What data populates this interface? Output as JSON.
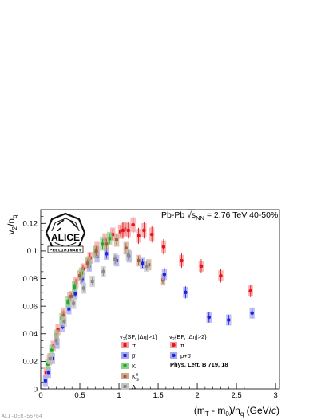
{
  "figure_id": "ALI-DER-55764",
  "system_label": "Pb-Pb √s",
  "system_sub": "NN",
  "system_rest": " = 2.76 TeV 40-50%",
  "logo": {
    "name": "ALICE",
    "status": "PRELIMINARY"
  },
  "reference": "Phys. Lett. B 719, 18",
  "legend": {
    "sp_header": "v2{SP, |Δη|>1}",
    "ep_header": "v2{EP, |Δη|>2}",
    "sp_entries": [
      {
        "label": "π",
        "color": "#e8141a",
        "band": "#f4a0a0",
        "marker": "square"
      },
      {
        "label": "p̅",
        "color": "#1f22e0",
        "band": "#a6a8ee",
        "marker": "square"
      },
      {
        "label": "K",
        "color": "#22a82a",
        "band": "#8fd08f",
        "marker": "square"
      },
      {
        "label": "K0S",
        "color": "#a0623c",
        "band": "#cfa98f",
        "marker": "square"
      },
      {
        "label": "Λ",
        "color": "#8a8a8a",
        "band": "#c4c4c4",
        "marker": "square"
      }
    ],
    "ep_entries": [
      {
        "label": "π",
        "color": "#e8141a",
        "band": "#f4a0a0",
        "marker": "circle"
      },
      {
        "label": "p+p̅",
        "color": "#1f22e0",
        "band": "#a6a8ee",
        "marker": "circle"
      }
    ]
  },
  "chart_data": {
    "type": "scatter",
    "title": "",
    "xlabel": "(mT - m0)/nq (GeV/c)",
    "ylabel": "v2/nq",
    "xlim": [
      0,
      3.05
    ],
    "ylim": [
      0,
      0.13
    ],
    "xticks": [
      "0",
      "0.5",
      "1",
      "1.5",
      "2",
      "2.5",
      "3"
    ],
    "yticks": [
      "0",
      "0.02",
      "0.04",
      "0.06",
      "0.08",
      "0.1",
      "0.12"
    ],
    "series": [
      {
        "name": "π",
        "method": "SP",
        "color": "#e8141a",
        "band": "#f4a0a0",
        "points": [
          [
            0.07,
            0.012
          ],
          [
            0.11,
            0.021
          ],
          [
            0.16,
            0.031
          ],
          [
            0.22,
            0.043
          ],
          [
            0.29,
            0.055
          ],
          [
            0.37,
            0.066
          ],
          [
            0.45,
            0.077
          ],
          [
            0.54,
            0.087
          ],
          [
            0.63,
            0.095
          ],
          [
            0.72,
            0.102
          ],
          [
            0.82,
            0.108
          ],
          [
            0.92,
            0.112
          ],
          [
            1.02,
            0.114
          ],
          [
            1.08,
            0.116
          ]
        ]
      },
      {
        "name": "p̅",
        "method": "SP",
        "color": "#1f22e0",
        "band": "#a6a8ee",
        "points": [
          [
            0.06,
            0.006
          ],
          [
            0.1,
            0.012
          ],
          [
            0.15,
            0.022
          ],
          [
            0.21,
            0.033
          ],
          [
            0.28,
            0.045
          ],
          [
            0.36,
            0.058
          ],
          [
            0.44,
            0.069
          ],
          [
            0.53,
            0.08
          ],
          [
            0.62,
            0.089
          ],
          [
            0.72,
            0.096
          ],
          [
            0.84,
            0.098
          ],
          [
            0.97,
            0.093
          ],
          [
            1.13,
            0.096
          ],
          [
            1.3,
            0.091
          ]
        ]
      },
      {
        "name": "K",
        "method": "SP",
        "color": "#22a82a",
        "band": "#8fd08f",
        "points": [
          [
            0.09,
            0.018
          ],
          [
            0.14,
            0.028
          ],
          [
            0.2,
            0.039
          ],
          [
            0.27,
            0.051
          ],
          [
            0.35,
            0.063
          ],
          [
            0.43,
            0.074
          ],
          [
            0.52,
            0.084
          ],
          [
            0.61,
            0.092
          ],
          [
            0.7,
            0.099
          ],
          [
            0.79,
            0.105
          ],
          [
            0.88,
            0.109
          ]
        ]
      },
      {
        "name": "K0S",
        "method": "SP",
        "color": "#a0623c",
        "band": "#cfa98f",
        "points": [
          [
            0.12,
            0.022
          ],
          [
            0.2,
            0.037
          ],
          [
            0.29,
            0.053
          ],
          [
            0.39,
            0.067
          ],
          [
            0.5,
            0.082
          ],
          [
            0.6,
            0.091
          ],
          [
            0.71,
            0.1
          ],
          [
            0.84,
            0.105
          ],
          [
            0.97,
            0.108
          ],
          [
            1.09,
            0.102
          ],
          [
            1.25,
            0.093
          ],
          [
            1.38,
            0.09
          ],
          [
            1.56,
            0.079
          ]
        ]
      },
      {
        "name": "Λ",
        "method": "SP",
        "color": "#8a8a8a",
        "band": "#c4c4c4",
        "points": [
          [
            0.12,
            0.022
          ],
          [
            0.2,
            0.035
          ],
          [
            0.3,
            0.049
          ],
          [
            0.42,
            0.062
          ],
          [
            0.55,
            0.073
          ],
          [
            0.66,
            0.078
          ],
          [
            0.8,
            0.085
          ],
          [
            0.95,
            0.094
          ],
          [
            1.12,
            0.097
          ],
          [
            1.35,
            0.089
          ]
        ]
      },
      {
        "name": "π",
        "method": "EP",
        "color": "#e8141a",
        "band": "#f4a0a0",
        "points": [
          [
            1.05,
            0.115
          ],
          [
            1.12,
            0.115
          ],
          [
            1.18,
            0.119
          ],
          [
            1.25,
            0.111
          ],
          [
            1.32,
            0.115
          ],
          [
            1.42,
            0.112
          ],
          [
            1.57,
            0.103
          ],
          [
            1.8,
            0.093
          ],
          [
            2.05,
            0.089
          ],
          [
            2.3,
            0.082
          ],
          [
            2.68,
            0.071
          ]
        ]
      },
      {
        "name": "p+p̅",
        "method": "EP",
        "color": "#1f22e0",
        "band": "#a6a8ee",
        "points": [
          [
            1.58,
            0.083
          ],
          [
            1.85,
            0.07
          ],
          [
            2.15,
            0.052
          ],
          [
            2.4,
            0.05
          ],
          [
            2.7,
            0.055
          ]
        ]
      }
    ]
  }
}
